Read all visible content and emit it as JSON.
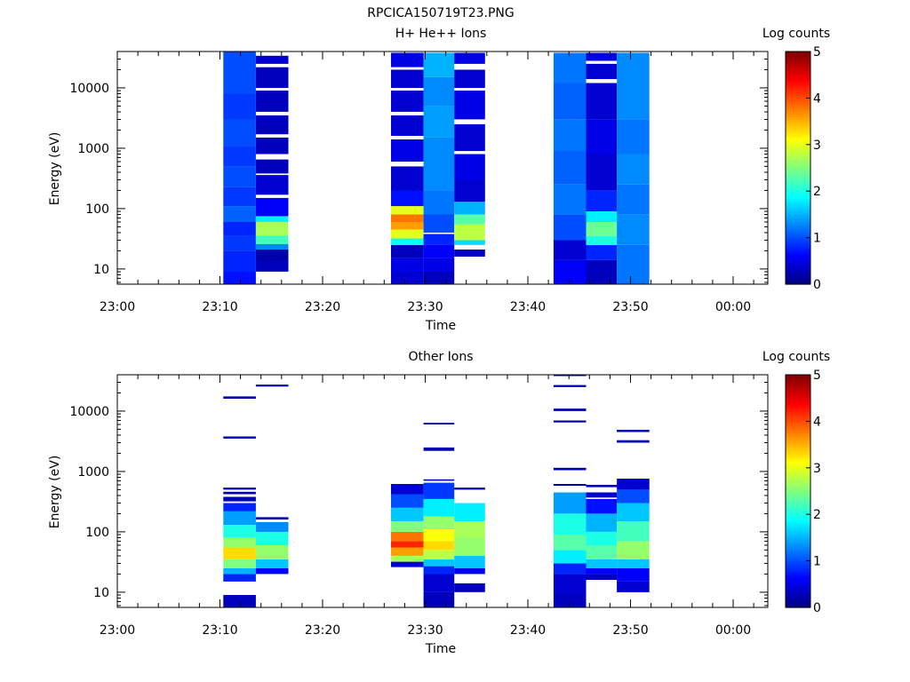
{
  "figure": {
    "title": "RPCICA150719T23.PNG"
  },
  "chart_data": [
    {
      "type": "heatmap",
      "title": "H+ He++ Ions",
      "xlabel": "Time",
      "ylabel": "Energy (eV)",
      "x_ticks": [
        "23:00",
        "23:10",
        "23:20",
        "23:30",
        "23:40",
        "23:50",
        "00:00"
      ],
      "y_ticks": [
        "10",
        "100",
        "1000",
        "10000"
      ],
      "y_scale": "log",
      "ylim": [
        5.6,
        40000
      ],
      "colorbar": {
        "label": "Log counts",
        "ticks": [
          "0",
          "1",
          "2",
          "3",
          "4",
          "5"
        ],
        "range": [
          0,
          5
        ],
        "colormap": "jet"
      },
      "columns": [
        {
          "t_start": "23:10:20",
          "t_end": "23:13:30",
          "bins": [
            [
              5.6,
              9,
              0.7
            ],
            [
              9,
              20,
              0.8
            ],
            [
              20,
              35,
              0.9
            ],
            [
              35,
              60,
              0.8
            ],
            [
              60,
              110,
              1.1
            ],
            [
              110,
              230,
              0.9
            ],
            [
              230,
              500,
              1.0
            ],
            [
              500,
              1100,
              0.9
            ],
            [
              1100,
              3000,
              1.0
            ],
            [
              3000,
              8000,
              0.9
            ],
            [
              8000,
              40000,
              1.0
            ]
          ]
        },
        {
          "t_start": "23:13:30",
          "t_end": "23:16:40",
          "bins": [
            [
              9,
              14,
              0.3
            ],
            [
              14,
              21,
              0.2
            ],
            [
              21,
              26,
              1.3
            ],
            [
              26,
              36,
              2.2
            ],
            [
              36,
              60,
              2.7
            ],
            [
              60,
              75,
              1.8
            ],
            [
              75,
              150,
              0.6
            ],
            [
              170,
              360,
              0.4
            ],
            [
              380,
              650,
              0.3
            ],
            [
              800,
              1500,
              0.3
            ],
            [
              1700,
              3500,
              0.3
            ],
            [
              4000,
              9000,
              0.3
            ],
            [
              10000,
              22000,
              0.3
            ],
            [
              25000,
              34000,
              0.4
            ]
          ]
        },
        {
          "t_start": "23:26:40",
          "t_end": "23:29:50",
          "bins": [
            [
              5.6,
              9,
              0.4
            ],
            [
              9,
              15,
              0.5
            ],
            [
              15,
              25,
              0.3
            ],
            [
              25,
              32,
              1.9
            ],
            [
              32,
              45,
              3.0
            ],
            [
              45,
              60,
              3.6
            ],
            [
              60,
              80,
              3.8
            ],
            [
              80,
              110,
              3.0
            ],
            [
              110,
              200,
              0.7
            ],
            [
              200,
              500,
              0.4
            ],
            [
              600,
              1400,
              0.5
            ],
            [
              1600,
              3500,
              0.4
            ],
            [
              4000,
              9000,
              0.4
            ],
            [
              10000,
              20000,
              0.4
            ],
            [
              22000,
              38000,
              0.5
            ]
          ]
        },
        {
          "t_start": "23:29:50",
          "t_end": "23:32:50",
          "bins": [
            [
              5.6,
              9,
              0.3
            ],
            [
              9,
              15,
              0.5
            ],
            [
              15,
              25,
              0.6
            ],
            [
              25,
              38,
              0.8
            ],
            [
              40,
              80,
              1.0
            ],
            [
              80,
              200,
              1.2
            ],
            [
              200,
              600,
              1.3
            ],
            [
              600,
              1500,
              1.3
            ],
            [
              1500,
              5000,
              1.4
            ],
            [
              5000,
              15000,
              1.3
            ],
            [
              15000,
              38000,
              1.5
            ]
          ]
        },
        {
          "t_start": "23:32:50",
          "t_end": "23:35:50",
          "bins": [
            [
              16,
              21,
              0.3
            ],
            [
              25,
              30,
              1.7
            ],
            [
              30,
              55,
              2.8
            ],
            [
              55,
              80,
              2.3
            ],
            [
              80,
              130,
              1.5
            ],
            [
              130,
              300,
              0.4
            ],
            [
              300,
              800,
              0.5
            ],
            [
              900,
              2500,
              0.4
            ],
            [
              3000,
              9000,
              0.5
            ],
            [
              10000,
              20000,
              0.4
            ],
            [
              25000,
              38000,
              0.5
            ]
          ]
        },
        {
          "t_start": "23:42:30",
          "t_end": "23:45:40",
          "bins": [
            [
              5.6,
              14,
              0.6
            ],
            [
              14,
              30,
              0.4
            ],
            [
              30,
              80,
              1.0
            ],
            [
              80,
              250,
              1.2
            ],
            [
              250,
              900,
              1.1
            ],
            [
              900,
              3000,
              1.2
            ],
            [
              3000,
              12000,
              1.1
            ],
            [
              12000,
              38000,
              1.2
            ]
          ]
        },
        {
          "t_start": "23:45:40",
          "t_end": "23:48:40",
          "bins": [
            [
              5.6,
              14,
              0.3
            ],
            [
              14,
              25,
              0.8
            ],
            [
              25,
              35,
              2.0
            ],
            [
              35,
              60,
              2.4
            ],
            [
              60,
              90,
              1.8
            ],
            [
              90,
              200,
              0.8
            ],
            [
              200,
              800,
              0.4
            ],
            [
              800,
              3000,
              0.5
            ],
            [
              3000,
              12000,
              0.4
            ],
            [
              14000,
              25000,
              0.4
            ],
            [
              28000,
              38000,
              0.5
            ]
          ]
        },
        {
          "t_start": "23:48:40",
          "t_end": "23:51:50",
          "bins": [
            [
              5.6,
              25,
              1.2
            ],
            [
              25,
              80,
              1.3
            ],
            [
              80,
              250,
              1.2
            ],
            [
              250,
              800,
              1.3
            ],
            [
              800,
              3000,
              1.2
            ],
            [
              3000,
              12000,
              1.3
            ],
            [
              12000,
              38000,
              1.3
            ]
          ]
        }
      ]
    },
    {
      "type": "heatmap",
      "title": "Other Ions",
      "xlabel": "Time",
      "ylabel": "Energy (eV)",
      "x_ticks": [
        "23:00",
        "23:10",
        "23:20",
        "23:30",
        "23:40",
        "23:50",
        "00:00"
      ],
      "y_ticks": [
        "10",
        "100",
        "1000",
        "10000"
      ],
      "y_scale": "log",
      "ylim": [
        5.6,
        40000
      ],
      "colorbar": {
        "label": "Log counts",
        "ticks": [
          "0",
          "1",
          "2",
          "3",
          "4",
          "5"
        ],
        "range": [
          0,
          5
        ],
        "colormap": "jet"
      },
      "columns": [
        {
          "t_start": "23:10:20",
          "t_end": "23:13:30",
          "bins": [
            [
              5.6,
              9,
              0.3
            ],
            [
              15,
              20,
              0.8
            ],
            [
              20,
              25,
              1.5
            ],
            [
              25,
              35,
              2.5
            ],
            [
              35,
              55,
              3.3
            ],
            [
              55,
              80,
              2.6
            ],
            [
              80,
              130,
              2.0
            ],
            [
              130,
              220,
              1.4
            ],
            [
              220,
              300,
              0.8
            ],
            [
              320,
              380,
              0.3
            ],
            [
              420,
              460,
              0.2
            ],
            [
              500,
              540,
              0.2
            ],
            [
              3500,
              3800,
              0.2
            ],
            [
              16000,
              17500,
              0.2
            ]
          ]
        },
        {
          "t_start": "23:13:30",
          "t_end": "23:16:40",
          "bins": [
            [
              20,
              25,
              0.6
            ],
            [
              25,
              35,
              1.6
            ],
            [
              35,
              60,
              2.6
            ],
            [
              60,
              100,
              2.0
            ],
            [
              100,
              145,
              1.3
            ],
            [
              160,
              175,
              0.2
            ],
            [
              25500,
              27500,
              0.2
            ]
          ]
        },
        {
          "t_start": "23:26:40",
          "t_end": "23:29:50",
          "bins": [
            [
              26,
              32,
              0.4
            ],
            [
              32,
              40,
              2.7
            ],
            [
              40,
              55,
              3.6
            ],
            [
              55,
              70,
              4.2
            ],
            [
              70,
              100,
              3.8
            ],
            [
              100,
              150,
              2.5
            ],
            [
              150,
              250,
              1.6
            ],
            [
              250,
              420,
              1.0
            ],
            [
              420,
              620,
              0.4
            ]
          ]
        },
        {
          "t_start": "23:29:50",
          "t_end": "23:32:50",
          "bins": [
            [
              5.6,
              10,
              0.3
            ],
            [
              10,
              20,
              0.4
            ],
            [
              20,
              27,
              0.8
            ],
            [
              27,
              35,
              1.6
            ],
            [
              35,
              50,
              2.8
            ],
            [
              50,
              70,
              3.3
            ],
            [
              70,
              110,
              3.1
            ],
            [
              110,
              180,
              2.6
            ],
            [
              180,
              350,
              1.8
            ],
            [
              350,
              650,
              0.9
            ],
            [
              700,
              740,
              0.2
            ],
            [
              2200,
              2500,
              0.2
            ],
            [
              6000,
              6400,
              0.2
            ]
          ]
        },
        {
          "t_start": "23:32:50",
          "t_end": "23:35:50",
          "bins": [
            [
              10,
              14,
              0.3
            ],
            [
              20,
              25,
              0.5
            ],
            [
              25,
              40,
              1.6
            ],
            [
              40,
              80,
              2.6
            ],
            [
              80,
              150,
              2.7
            ],
            [
              150,
              300,
              1.8
            ],
            [
              500,
              540,
              0.2
            ]
          ]
        },
        {
          "t_start": "23:42:30",
          "t_end": "23:45:40",
          "bins": [
            [
              5.6,
              9,
              0.3
            ],
            [
              9,
              20,
              0.4
            ],
            [
              20,
              30,
              0.8
            ],
            [
              30,
              50,
              1.8
            ],
            [
              50,
              90,
              2.3
            ],
            [
              90,
              200,
              2.0
            ],
            [
              200,
              450,
              1.4
            ],
            [
              580,
              620,
              0.2
            ],
            [
              1050,
              1150,
              0.2
            ],
            [
              6500,
              7000,
              0.2
            ],
            [
              10000,
              11000,
              0.2
            ],
            [
              25000,
              27000,
              0.2
            ],
            [
              38000,
              40000,
              0.2
            ]
          ]
        },
        {
          "t_start": "23:45:40",
          "t_end": "23:48:40",
          "bins": [
            [
              16,
              20,
              0.3
            ],
            [
              20,
              25,
              0.6
            ],
            [
              25,
              35,
              1.6
            ],
            [
              35,
              60,
              2.3
            ],
            [
              60,
              100,
              2.0
            ],
            [
              100,
              200,
              1.5
            ],
            [
              200,
              350,
              0.7
            ],
            [
              370,
              450,
              0.4
            ],
            [
              550,
              600,
              0.2
            ]
          ]
        },
        {
          "t_start": "23:48:40",
          "t_end": "23:51:50",
          "bins": [
            [
              10,
              15,
              0.4
            ],
            [
              15,
              25,
              0.6
            ],
            [
              25,
              35,
              1.6
            ],
            [
              35,
              70,
              2.6
            ],
            [
              70,
              150,
              2.2
            ],
            [
              150,
              300,
              1.6
            ],
            [
              300,
              500,
              1.0
            ],
            [
              500,
              760,
              0.4
            ],
            [
              3000,
              3300,
              0.2
            ],
            [
              4500,
              4900,
              0.2
            ]
          ]
        }
      ]
    }
  ]
}
